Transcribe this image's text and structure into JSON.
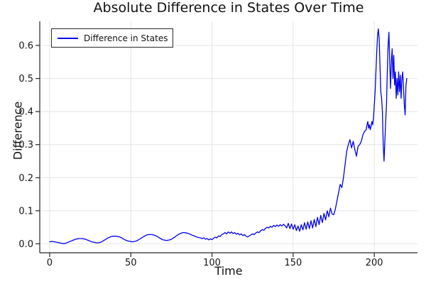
{
  "chart_data": {
    "type": "line",
    "title": "Absolute Difference in States Over Time",
    "xlabel": "Time",
    "ylabel": "Difference",
    "xlim": [
      -6.1,
      226.6
    ],
    "ylim": [
      -0.027,
      0.673
    ],
    "grid": true,
    "x_ticks": [
      0,
      50,
      100,
      150,
      200
    ],
    "x_tick_labels": [
      "0",
      "50",
      "100",
      "150",
      "200"
    ],
    "y_ticks": [
      0.0,
      0.1,
      0.2,
      0.3,
      0.4,
      0.5,
      0.6
    ],
    "y_tick_labels": [
      "0.0",
      "0.1",
      "0.2",
      "0.3",
      "0.4",
      "0.5",
      "0.6"
    ],
    "line_color": "#0000ee",
    "grid_color": "#e4e4e4",
    "axis_color": "#262626",
    "legend": {
      "position": "top-left",
      "entries": [
        {
          "label": "Difference in States",
          "color": "#0000ee"
        }
      ]
    },
    "series": [
      {
        "name": "Difference in States",
        "color": "#0000ee",
        "points": [
          [
            0,
            0.006
          ],
          [
            1,
            0.007
          ],
          [
            2,
            0.007
          ],
          [
            3,
            0.006
          ],
          [
            4,
            0.005
          ],
          [
            5,
            0.004
          ],
          [
            6,
            0.003
          ],
          [
            7,
            0.002
          ],
          [
            8,
            0.001
          ],
          [
            9,
            0.001
          ],
          [
            10,
            0.002
          ],
          [
            11,
            0.004
          ],
          [
            12,
            0.006
          ],
          [
            13,
            0.008
          ],
          [
            14,
            0.01
          ],
          [
            15,
            0.012
          ],
          [
            16,
            0.014
          ],
          [
            17,
            0.015
          ],
          [
            18,
            0.016
          ],
          [
            19,
            0.016
          ],
          [
            20,
            0.016
          ],
          [
            21,
            0.015
          ],
          [
            22,
            0.014
          ],
          [
            23,
            0.012
          ],
          [
            24,
            0.01
          ],
          [
            25,
            0.008
          ],
          [
            26,
            0.006
          ],
          [
            27,
            0.005
          ],
          [
            28,
            0.004
          ],
          [
            29,
            0.003
          ],
          [
            30,
            0.003
          ],
          [
            31,
            0.004
          ],
          [
            32,
            0.006
          ],
          [
            33,
            0.009
          ],
          [
            34,
            0.012
          ],
          [
            35,
            0.015
          ],
          [
            36,
            0.018
          ],
          [
            37,
            0.02
          ],
          [
            38,
            0.022
          ],
          [
            39,
            0.023
          ],
          [
            40,
            0.023
          ],
          [
            41,
            0.023
          ],
          [
            42,
            0.022
          ],
          [
            43,
            0.021
          ],
          [
            44,
            0.019
          ],
          [
            45,
            0.016
          ],
          [
            46,
            0.013
          ],
          [
            47,
            0.011
          ],
          [
            48,
            0.009
          ],
          [
            49,
            0.008
          ],
          [
            50,
            0.007
          ],
          [
            51,
            0.006
          ],
          [
            52,
            0.007
          ],
          [
            53,
            0.008
          ],
          [
            54,
            0.01
          ],
          [
            55,
            0.013
          ],
          [
            56,
            0.016
          ],
          [
            57,
            0.019
          ],
          [
            58,
            0.022
          ],
          [
            59,
            0.025
          ],
          [
            60,
            0.027
          ],
          [
            61,
            0.028
          ],
          [
            62,
            0.028
          ],
          [
            63,
            0.028
          ],
          [
            64,
            0.027
          ],
          [
            65,
            0.025
          ],
          [
            66,
            0.023
          ],
          [
            67,
            0.02
          ],
          [
            68,
            0.017
          ],
          [
            69,
            0.014
          ],
          [
            70,
            0.012
          ],
          [
            71,
            0.011
          ],
          [
            72,
            0.01
          ],
          [
            73,
            0.011
          ],
          [
            74,
            0.012
          ],
          [
            75,
            0.014
          ],
          [
            76,
            0.017
          ],
          [
            77,
            0.02
          ],
          [
            78,
            0.024
          ],
          [
            79,
            0.027
          ],
          [
            80,
            0.03
          ],
          [
            81,
            0.032
          ],
          [
            82,
            0.034
          ],
          [
            83,
            0.034
          ],
          [
            84,
            0.033
          ],
          [
            85,
            0.032
          ],
          [
            86,
            0.03
          ],
          [
            87,
            0.028
          ],
          [
            88,
            0.026
          ],
          [
            89,
            0.024
          ],
          [
            90,
            0.022
          ],
          [
            91,
            0.02
          ],
          [
            92,
            0.019
          ],
          [
            93,
            0.018
          ],
          [
            94,
            0.016
          ],
          [
            95,
            0.018
          ],
          [
            96,
            0.014
          ],
          [
            97,
            0.016
          ],
          [
            98,
            0.012
          ],
          [
            99,
            0.015
          ],
          [
            100,
            0.013
          ],
          [
            101,
            0.017
          ],
          [
            102,
            0.02
          ],
          [
            103,
            0.018
          ],
          [
            104,
            0.024
          ],
          [
            105,
            0.022
          ],
          [
            106,
            0.028
          ],
          [
            107,
            0.03
          ],
          [
            108,
            0.034
          ],
          [
            109,
            0.03
          ],
          [
            110,
            0.036
          ],
          [
            111,
            0.032
          ],
          [
            112,
            0.036
          ],
          [
            113,
            0.031
          ],
          [
            114,
            0.034
          ],
          [
            115,
            0.029
          ],
          [
            116,
            0.032
          ],
          [
            117,
            0.027
          ],
          [
            118,
            0.03
          ],
          [
            119,
            0.025
          ],
          [
            120,
            0.028
          ],
          [
            121,
            0.023
          ],
          [
            122,
            0.021
          ],
          [
            123,
            0.024
          ],
          [
            124,
            0.027
          ],
          [
            125,
            0.03
          ],
          [
            126,
            0.028
          ],
          [
            127,
            0.033
          ],
          [
            128,
            0.036
          ],
          [
            129,
            0.034
          ],
          [
            130,
            0.04
          ],
          [
            131,
            0.043
          ],
          [
            132,
            0.041
          ],
          [
            133,
            0.047
          ],
          [
            134,
            0.05
          ],
          [
            135,
            0.048
          ],
          [
            136,
            0.053
          ],
          [
            137,
            0.05
          ],
          [
            138,
            0.056
          ],
          [
            139,
            0.052
          ],
          [
            140,
            0.057
          ],
          [
            141,
            0.053
          ],
          [
            142,
            0.058
          ],
          [
            143,
            0.054
          ],
          [
            144,
            0.059
          ],
          [
            145,
            0.055
          ],
          [
            146,
            0.048
          ],
          [
            147,
            0.062
          ],
          [
            148,
            0.046
          ],
          [
            149,
            0.06
          ],
          [
            150,
            0.044
          ],
          [
            151,
            0.058
          ],
          [
            152,
            0.04
          ],
          [
            153,
            0.054
          ],
          [
            154,
            0.038
          ],
          [
            155,
            0.058
          ],
          [
            156,
            0.042
          ],
          [
            157,
            0.064
          ],
          [
            158,
            0.044
          ],
          [
            159,
            0.066
          ],
          [
            160,
            0.046
          ],
          [
            161,
            0.07
          ],
          [
            162,
            0.048
          ],
          [
            163,
            0.074
          ],
          [
            164,
            0.052
          ],
          [
            165,
            0.08
          ],
          [
            166,
            0.058
          ],
          [
            167,
            0.086
          ],
          [
            168,
            0.064
          ],
          [
            169,
            0.092
          ],
          [
            170,
            0.072
          ],
          [
            171,
            0.1
          ],
          [
            172,
            0.082
          ],
          [
            173,
            0.108
          ],
          [
            174,
            0.09
          ],
          [
            175,
            0.088
          ],
          [
            176,
            0.105
          ],
          [
            177,
            0.13
          ],
          [
            178,
            0.155
          ],
          [
            179,
            0.18
          ],
          [
            180,
            0.17
          ],
          [
            181,
            0.2
          ],
          [
            182,
            0.24
          ],
          [
            183,
            0.28
          ],
          [
            184,
            0.3
          ],
          [
            185,
            0.315
          ],
          [
            186,
            0.29
          ],
          [
            187,
            0.31
          ],
          [
            188,
            0.285
          ],
          [
            189,
            0.265
          ],
          [
            190,
            0.295
          ],
          [
            191,
            0.3
          ],
          [
            192,
            0.31
          ],
          [
            193,
            0.33
          ],
          [
            194,
            0.34
          ],
          [
            195,
            0.345
          ],
          [
            195.5,
            0.36
          ],
          [
            196,
            0.37
          ],
          [
            196.5,
            0.35
          ],
          [
            197,
            0.36
          ],
          [
            197.5,
            0.345
          ],
          [
            198,
            0.355
          ],
          [
            198.5,
            0.37
          ],
          [
            199,
            0.36
          ],
          [
            199.5,
            0.38
          ],
          [
            200,
            0.42
          ],
          [
            200.5,
            0.46
          ],
          [
            201,
            0.52
          ],
          [
            201.5,
            0.58
          ],
          [
            202,
            0.63
          ],
          [
            202.5,
            0.65
          ],
          [
            203,
            0.62
          ],
          [
            203.5,
            0.54
          ],
          [
            204,
            0.46
          ],
          [
            204.5,
            0.44
          ],
          [
            205,
            0.4
          ],
          [
            205.5,
            0.3
          ],
          [
            206,
            0.25
          ],
          [
            206.5,
            0.31
          ],
          [
            207,
            0.37
          ],
          [
            207.5,
            0.42
          ],
          [
            208,
            0.52
          ],
          [
            208.5,
            0.6
          ],
          [
            209,
            0.64
          ],
          [
            209.5,
            0.55
          ],
          [
            210,
            0.47
          ],
          [
            210.5,
            0.55
          ],
          [
            211,
            0.59
          ],
          [
            211.5,
            0.5
          ],
          [
            212,
            0.57
          ],
          [
            212.5,
            0.48
          ],
          [
            213,
            0.52
          ],
          [
            213.5,
            0.44
          ],
          [
            214,
            0.5
          ],
          [
            214.5,
            0.45
          ],
          [
            215,
            0.52
          ],
          [
            215.5,
            0.46
          ],
          [
            216,
            0.51
          ],
          [
            216.5,
            0.44
          ],
          [
            217,
            0.5
          ],
          [
            217.5,
            0.52
          ],
          [
            218,
            0.47
          ],
          [
            218.5,
            0.42
          ],
          [
            219,
            0.39
          ],
          [
            219.5,
            0.48
          ],
          [
            220,
            0.5
          ]
        ]
      }
    ]
  }
}
